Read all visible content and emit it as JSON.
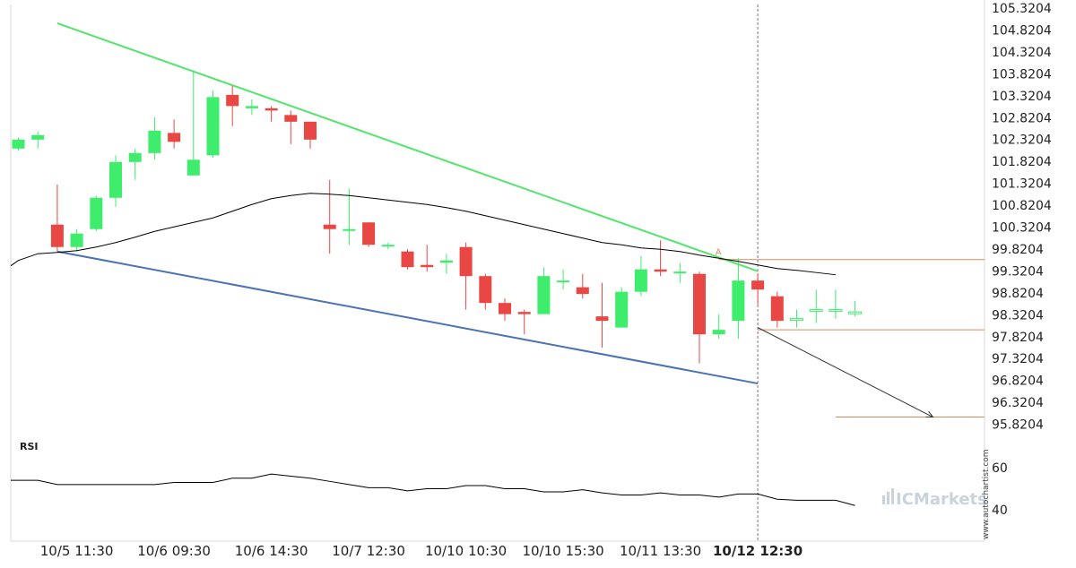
{
  "chart_data": {
    "type": "candlestick",
    "price_axis": {
      "ticks": [
        "105.3204",
        "104.8204",
        "104.3204",
        "103.8204",
        "103.3204",
        "102.8204",
        "102.3204",
        "101.8204",
        "101.3204",
        "100.8204",
        "100.3204",
        "99.8204",
        "99.3204",
        "98.8204",
        "98.3204",
        "97.8204",
        "97.3204",
        "96.8204",
        "96.3204",
        "95.8204"
      ],
      "range": [
        95.67,
        105.32
      ]
    },
    "x_labels": [
      {
        "label": "10/5 11:30",
        "index": 3,
        "bold": false
      },
      {
        "label": "10/6 09:30",
        "index": 8,
        "bold": false
      },
      {
        "label": "10/6 14:30",
        "index": 13,
        "bold": false
      },
      {
        "label": "10/7 12:30",
        "index": 18,
        "bold": false
      },
      {
        "label": "10/10 10:30",
        "index": 23,
        "bold": false
      },
      {
        "label": "10/10 15:30",
        "index": 28,
        "bold": false
      },
      {
        "label": "10/11 13:30",
        "index": 33,
        "bold": false
      },
      {
        "label": "10/12 12:30",
        "index": 38,
        "bold": true
      }
    ],
    "candles": [
      {
        "o": 102.1,
        "c": 102.3,
        "h": 102.35,
        "l": 102.05
      },
      {
        "o": 102.3,
        "c": 102.4,
        "h": 102.48,
        "l": 102.1
      },
      {
        "o": 100.4,
        "c": 99.9,
        "h": 101.3,
        "l": 99.8
      },
      {
        "o": 99.9,
        "c": 100.2,
        "h": 100.3,
        "l": 99.8
      },
      {
        "o": 100.3,
        "c": 101.0,
        "h": 101.05,
        "l": 100.25
      },
      {
        "o": 101.0,
        "c": 101.8,
        "h": 101.95,
        "l": 100.8
      },
      {
        "o": 101.8,
        "c": 102.0,
        "h": 102.1,
        "l": 101.4
      },
      {
        "o": 102.0,
        "c": 102.5,
        "h": 102.8,
        "l": 101.85
      },
      {
        "o": 102.45,
        "c": 102.25,
        "h": 102.75,
        "l": 102.1
      },
      {
        "o": 101.5,
        "c": 101.85,
        "h": 103.85,
        "l": 101.5
      },
      {
        "o": 101.95,
        "c": 103.25,
        "h": 103.4,
        "l": 101.9
      },
      {
        "o": 103.3,
        "c": 103.05,
        "h": 103.5,
        "l": 102.6
      },
      {
        "o": 103.0,
        "c": 103.05,
        "h": 103.2,
        "l": 102.85
      },
      {
        "o": 103.0,
        "c": 102.95,
        "h": 103.05,
        "l": 102.7
      },
      {
        "o": 102.85,
        "c": 102.7,
        "h": 102.95,
        "l": 102.2
      },
      {
        "o": 102.7,
        "c": 102.3,
        "h": 102.7,
        "l": 102.1
      },
      {
        "o": 100.4,
        "c": 100.3,
        "h": 101.4,
        "l": 99.75
      },
      {
        "o": 100.3,
        "c": 100.3,
        "h": 101.2,
        "l": 99.95
      },
      {
        "o": 100.45,
        "c": 99.95,
        "h": 100.45,
        "l": 99.9
      },
      {
        "o": 99.95,
        "c": 99.95,
        "h": 100.0,
        "l": 99.85
      },
      {
        "o": 99.8,
        "c": 99.45,
        "h": 99.85,
        "l": 99.4
      },
      {
        "o": 99.5,
        "c": 99.45,
        "h": 99.95,
        "l": 99.35
      },
      {
        "o": 99.55,
        "c": 99.6,
        "h": 99.75,
        "l": 99.3
      },
      {
        "o": 99.9,
        "c": 99.25,
        "h": 100.0,
        "l": 98.5
      },
      {
        "o": 99.25,
        "c": 98.65,
        "h": 99.3,
        "l": 98.5
      },
      {
        "o": 98.65,
        "c": 98.4,
        "h": 98.75,
        "l": 98.25
      },
      {
        "o": 98.45,
        "c": 98.4,
        "h": 98.5,
        "l": 97.95
      },
      {
        "o": 98.4,
        "c": 99.25,
        "h": 99.45,
        "l": 98.4
      },
      {
        "o": 99.15,
        "c": 99.15,
        "h": 99.4,
        "l": 98.95
      },
      {
        "o": 99.0,
        "c": 98.85,
        "h": 99.3,
        "l": 98.75
      },
      {
        "o": 98.35,
        "c": 98.25,
        "h": 99.1,
        "l": 97.65
      },
      {
        "o": 98.1,
        "c": 98.9,
        "h": 99.0,
        "l": 98.1
      },
      {
        "o": 98.9,
        "c": 99.4,
        "h": 99.7,
        "l": 98.8
      },
      {
        "o": 99.4,
        "c": 99.35,
        "h": 100.05,
        "l": 99.25
      },
      {
        "o": 99.35,
        "c": 99.35,
        "h": 99.55,
        "l": 99.1
      },
      {
        "o": 99.3,
        "c": 97.95,
        "h": 99.35,
        "l": 97.3
      },
      {
        "o": 97.95,
        "c": 98.05,
        "h": 98.4,
        "l": 97.85
      },
      {
        "o": 98.25,
        "c": 99.15,
        "h": 99.65,
        "l": 97.85
      },
      {
        "o": 99.15,
        "c": 98.95,
        "h": 99.3,
        "l": 98.6
      },
      {
        "o": 98.8,
        "c": 98.25,
        "h": 98.9,
        "l": 98.1
      },
      {
        "o": 98.3,
        "c": 98.3,
        "h": 98.5,
        "l": 98.1
      },
      {
        "o": 98.5,
        "c": 98.5,
        "h": 98.95,
        "l": 98.2
      },
      {
        "o": 98.5,
        "c": 98.5,
        "h": 98.95,
        "l": 98.3
      },
      {
        "o": 98.45,
        "c": 98.45,
        "h": 98.7,
        "l": 98.35
      }
    ],
    "moving_average": [
      99.6,
      99.75,
      99.78,
      99.82,
      99.9,
      100.0,
      100.12,
      100.25,
      100.35,
      100.45,
      100.55,
      100.7,
      100.85,
      100.98,
      101.05,
      101.1,
      101.08,
      101.05,
      101.0,
      100.95,
      100.9,
      100.85,
      100.78,
      100.7,
      100.6,
      100.5,
      100.4,
      100.3,
      100.2,
      100.1,
      100.0,
      99.95,
      99.88,
      99.85,
      99.8,
      99.72,
      99.65,
      99.58,
      99.5,
      99.42,
      99.38,
      99.33,
      99.28
    ],
    "patterns": {
      "resistance_line": {
        "from": {
          "index": 2,
          "price": 104.9
        },
        "to": {
          "index": 38,
          "price": 99.36
        }
      },
      "support_line": {
        "from": {
          "index": 2,
          "price": 99.8
        },
        "to": {
          "index": 38,
          "price": 96.85
        }
      },
      "projection": {
        "from": {
          "index": 38,
          "price": 98.1
        },
        "to": {
          "index": 47,
          "price": 96.1
        }
      },
      "level_upper": 99.62,
      "level_middle": 98.05,
      "level_target": 96.1,
      "marker_label": "A",
      "event_index": 38
    },
    "rsi": {
      "title": "RSI",
      "ticks": [
        "60",
        "40"
      ],
      "range": [
        25,
        75
      ],
      "values": [
        54,
        54,
        52,
        52,
        52,
        52,
        52,
        52,
        53,
        53,
        53,
        55,
        55,
        57,
        56,
        55,
        53.5,
        52,
        50.5,
        50.5,
        49,
        50,
        50,
        51.5,
        51.5,
        50,
        50,
        48.5,
        48.5,
        49.5,
        48,
        47,
        47,
        48,
        47,
        47,
        46,
        47.5,
        47.5,
        45,
        44.5,
        44.5,
        44.5,
        42
      ]
    },
    "colors": {
      "bull": "#3ded6b",
      "bear": "#e94743",
      "resistance": "#52e56c",
      "support": "#4b72b3",
      "level": "#df8a5a",
      "ma": "#000000",
      "projection": "#333333",
      "rsi_line": "#000000"
    }
  },
  "branding": {
    "watermark": "ICMarkets",
    "credit": "www.autochartist.com"
  }
}
